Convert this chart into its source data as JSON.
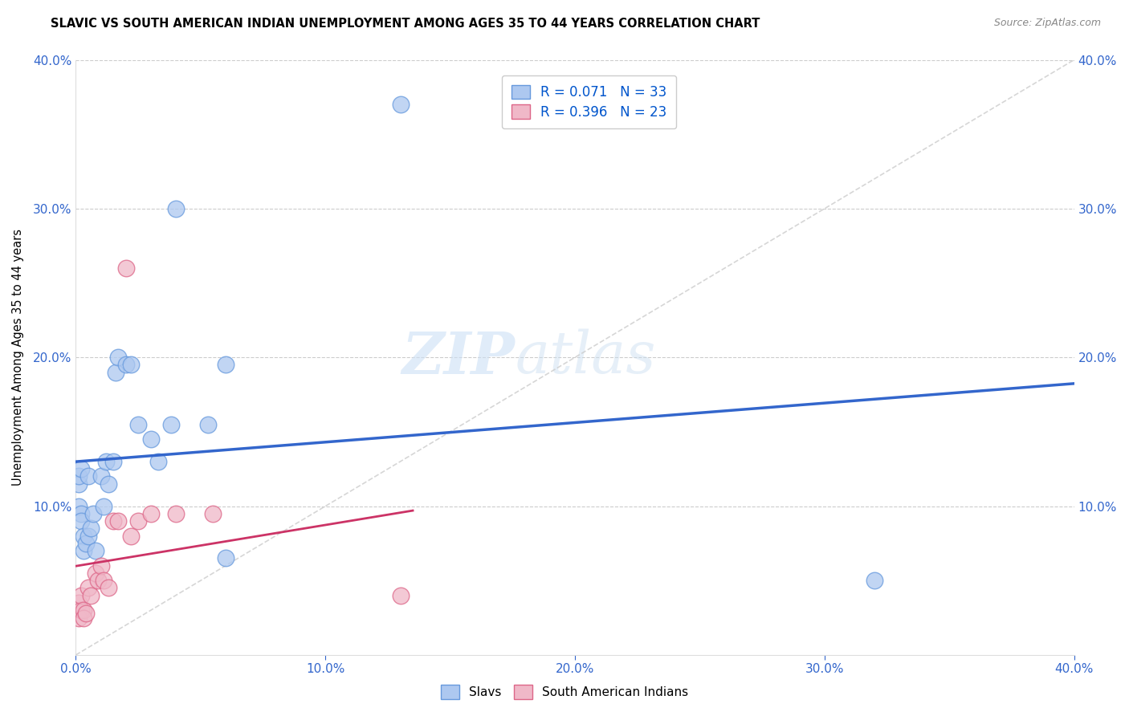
{
  "title": "SLAVIC VS SOUTH AMERICAN INDIAN UNEMPLOYMENT AMONG AGES 35 TO 44 YEARS CORRELATION CHART",
  "source": "Source: ZipAtlas.com",
  "ylabel": "Unemployment Among Ages 35 to 44 years",
  "xlim": [
    0.0,
    0.4
  ],
  "ylim": [
    0.0,
    0.4
  ],
  "ytick_values": [
    0.0,
    0.1,
    0.2,
    0.3,
    0.4
  ],
  "ytick_labels_left": [
    "",
    "10.0%",
    "20.0%",
    "30.0%",
    "40.0%"
  ],
  "ytick_labels_right": [
    "",
    "10.0%",
    "20.0%",
    "30.0%",
    "40.0%"
  ],
  "xtick_values": [
    0.0,
    0.1,
    0.2,
    0.3,
    0.4
  ],
  "xtick_labels": [
    "0.0%",
    "10.0%",
    "20.0%",
    "30.0%",
    "40.0%"
  ],
  "slavs_color": "#adc8f0",
  "slavs_edge_color": "#6699dd",
  "south_american_color": "#f0b8c8",
  "south_american_edge_color": "#dd6688",
  "slavs_R": 0.071,
  "slavs_N": 33,
  "south_american_R": 0.396,
  "south_american_N": 23,
  "legend_R_color": "#0055cc",
  "legend_N_color": "#00aa00",
  "regression_slavs_color": "#3366cc",
  "regression_south_american_color": "#cc3366",
  "diagonal_color": "#cccccc",
  "slavs_x": [
    0.001,
    0.001,
    0.001,
    0.002,
    0.002,
    0.002,
    0.003,
    0.003,
    0.004,
    0.005,
    0.005,
    0.006,
    0.007,
    0.008,
    0.01,
    0.011,
    0.012,
    0.013,
    0.015,
    0.016,
    0.017,
    0.02,
    0.022,
    0.025,
    0.03,
    0.033,
    0.038,
    0.04,
    0.053,
    0.06,
    0.06,
    0.13,
    0.32
  ],
  "slavs_y": [
    0.115,
    0.12,
    0.1,
    0.125,
    0.095,
    0.09,
    0.08,
    0.07,
    0.075,
    0.12,
    0.08,
    0.085,
    0.095,
    0.07,
    0.12,
    0.1,
    0.13,
    0.115,
    0.13,
    0.19,
    0.2,
    0.195,
    0.195,
    0.155,
    0.145,
    0.13,
    0.155,
    0.3,
    0.155,
    0.065,
    0.195,
    0.37,
    0.05
  ],
  "south_american_x": [
    0.001,
    0.001,
    0.002,
    0.002,
    0.003,
    0.003,
    0.004,
    0.005,
    0.006,
    0.008,
    0.009,
    0.01,
    0.011,
    0.013,
    0.015,
    0.017,
    0.02,
    0.022,
    0.025,
    0.03,
    0.04,
    0.055,
    0.13
  ],
  "south_american_y": [
    0.025,
    0.035,
    0.03,
    0.04,
    0.03,
    0.025,
    0.028,
    0.045,
    0.04,
    0.055,
    0.05,
    0.06,
    0.05,
    0.045,
    0.09,
    0.09,
    0.26,
    0.08,
    0.09,
    0.095,
    0.095,
    0.095,
    0.04
  ],
  "watermark_zip": "ZIP",
  "watermark_atlas": "atlas",
  "background_color": "#ffffff",
  "grid_color": "#cccccc"
}
